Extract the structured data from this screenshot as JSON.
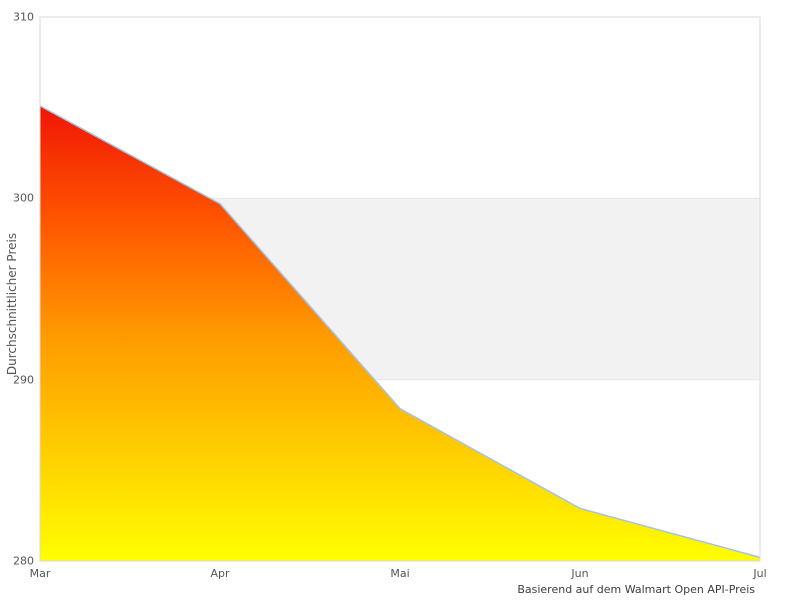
{
  "chart_data": {
    "type": "area",
    "title": "",
    "xlabel": "",
    "ylabel": "Durchschnittlicher Preis",
    "caption": "Basierend auf dem Walmart Open API-Preis",
    "x": [
      "Mar",
      "Apr",
      "Mai",
      "Jun",
      "Jul"
    ],
    "values": [
      305.1,
      299.7,
      288.4,
      282.9,
      280.2
    ],
    "ylim": [
      280,
      310
    ],
    "yticks": [
      280,
      290,
      300,
      310
    ],
    "grid": false,
    "legend": false,
    "band": {
      "from": 290,
      "to": 300,
      "fill_color": "#f2f2f2",
      "edge_color": "#e7e7e7"
    },
    "line_color": "#a5c3e2",
    "plot_border_color": "#d9d9d9",
    "area_gradient": [
      "#f01505",
      "#ff5500",
      "#ff9900",
      "#ffcc00",
      "#ffff00"
    ],
    "tick_color": "#555555"
  }
}
